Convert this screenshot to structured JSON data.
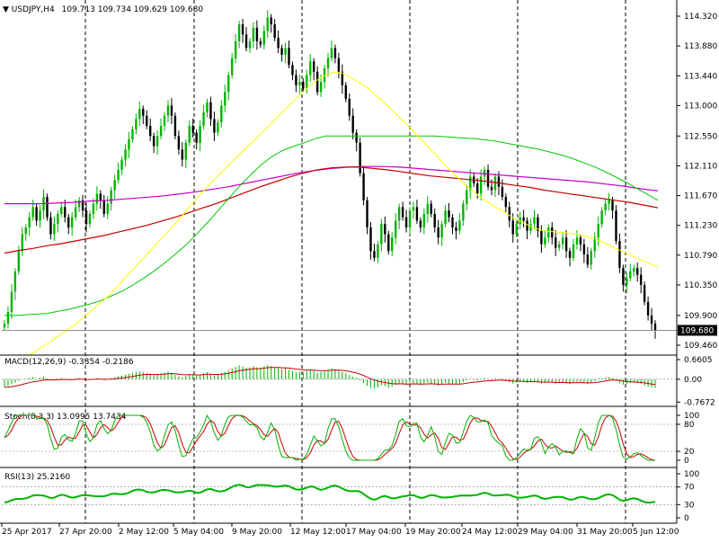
{
  "header": {
    "symbol_tf": "USDJPY,H4",
    "ohlc": "109.713 109.734 109.629 109.680"
  },
  "colors": {
    "candle_up": "#00b400",
    "candle_down": "#000000",
    "ma_fast": "#ffff00",
    "ma_mid": "#00c800",
    "ma_red": "#c80000",
    "ma_magenta": "#c800c8",
    "macd_hist": "#00b400",
    "macd_signal": "#c80000",
    "stoch_main": "#00b400",
    "stoch_signal": "#c80000",
    "rsi": "#00b400",
    "grid": "#000000",
    "price_tag_bg": "#000000",
    "price_tag_text": "#ffffff"
  },
  "chart_data": {
    "type": "line",
    "title": "USDJPY,H4",
    "price_axis": {
      "ticks": [
        "114.320",
        "113.880",
        "113.440",
        "113.000",
        "112.550",
        "112.110",
        "111.670",
        "111.230",
        "110.790",
        "110.350",
        "109.900",
        "109.460"
      ],
      "ylim": [
        109.46,
        114.32
      ]
    },
    "current_price": "109.680",
    "x_labels": [
      "25 Apr 2017",
      "27 Apr 20:00",
      "2 May 12:00",
      "5 May 04:00",
      "9 May 20:00",
      "12 May 12:00",
      "17 May 04:00",
      "19 May 20:00",
      "24 May 12:00",
      "29 May 04:00",
      "31 May 20:00",
      "5 Jun 12:00"
    ],
    "close": [
      109.78,
      109.95,
      110.25,
      110.55,
      110.85,
      111.1,
      111.2,
      111.35,
      111.5,
      111.3,
      111.45,
      111.65,
      111.35,
      111.1,
      111.25,
      111.4,
      111.5,
      111.35,
      111.2,
      111.35,
      111.5,
      111.6,
      111.45,
      111.25,
      111.4,
      111.55,
      111.7,
      111.6,
      111.4,
      111.55,
      111.75,
      111.9,
      112.05,
      112.2,
      112.35,
      112.5,
      112.65,
      112.8,
      112.95,
      112.85,
      112.7,
      112.55,
      112.4,
      112.55,
      112.7,
      112.85,
      113.0,
      112.85,
      112.55,
      112.35,
      112.2,
      112.45,
      112.7,
      112.6,
      112.45,
      112.7,
      112.9,
      113.05,
      112.8,
      112.6,
      112.75,
      113.0,
      113.2,
      113.45,
      113.7,
      113.95,
      114.2,
      114.05,
      113.85,
      113.95,
      114.15,
      113.95,
      113.9,
      114.1,
      114.3,
      114.2,
      114.0,
      113.85,
      113.75,
      113.85,
      113.6,
      113.45,
      113.3,
      113.35,
      113.25,
      113.45,
      113.65,
      113.5,
      113.2,
      113.35,
      113.55,
      113.7,
      113.85,
      113.7,
      113.5,
      113.3,
      113.1,
      112.85,
      112.6,
      112.45,
      112.0,
      111.6,
      111.2,
      110.85,
      110.75,
      110.95,
      111.25,
      111.1,
      110.85,
      111.05,
      111.3,
      111.5,
      111.35,
      111.2,
      111.45,
      111.5,
      111.3,
      111.2,
      111.4,
      111.55,
      111.4,
      111.2,
      111.05,
      111.25,
      111.45,
      111.35,
      111.2,
      111.15,
      111.3,
      111.55,
      111.75,
      111.95,
      111.85,
      111.7,
      111.95,
      112.05,
      111.8,
      111.75,
      111.95,
      111.8,
      111.65,
      111.5,
      111.3,
      111.1,
      111.25,
      111.35,
      111.3,
      111.15,
      111.25,
      111.35,
      111.15,
      110.95,
      111.05,
      111.2,
      111.05,
      110.9,
      110.95,
      111.05,
      110.85,
      110.75,
      110.95,
      111.05,
      110.95,
      110.8,
      110.65,
      110.85,
      111.05,
      111.25,
      111.45,
      111.55,
      111.6,
      111.45,
      111.0,
      110.6,
      110.35,
      110.45,
      110.55,
      110.6,
      110.5,
      110.35,
      110.1,
      109.9,
      109.78,
      109.68
    ],
    "ma_fast": [
      109.3,
      109.37,
      109.46,
      109.55,
      109.64,
      109.73,
      109.84,
      109.95,
      110.07,
      110.18,
      110.32,
      110.47,
      110.61,
      110.76,
      110.9,
      111.05,
      111.19,
      111.34,
      111.5,
      111.65,
      111.8,
      111.94,
      112.07,
      112.2,
      112.33,
      112.46,
      112.59,
      112.72,
      112.86,
      112.99,
      113.12,
      113.25,
      113.36,
      113.44,
      113.49,
      113.48,
      113.41,
      113.33,
      113.24,
      113.12,
      113.0,
      112.87,
      112.74,
      112.6,
      112.46,
      112.32,
      112.18,
      112.04,
      111.91,
      111.79,
      111.68,
      111.58,
      111.5,
      111.42,
      111.34,
      111.27,
      111.21,
      111.16,
      111.14,
      111.13,
      111.12,
      111.1,
      111.07,
      111.03,
      110.98,
      110.91,
      110.85,
      110.79,
      110.73,
      110.67,
      110.61
    ],
    "ma_mid": [
      109.9,
      109.9,
      109.91,
      109.92,
      109.93,
      109.96,
      109.99,
      110.03,
      110.07,
      110.12,
      110.19,
      110.26,
      110.35,
      110.45,
      110.56,
      110.68,
      110.81,
      110.95,
      111.11,
      111.28,
      111.46,
      111.64,
      111.82,
      111.98,
      112.13,
      112.25,
      112.34,
      112.4,
      112.45,
      112.51,
      112.55,
      112.55,
      112.55,
      112.55,
      112.55,
      112.55,
      112.55,
      112.55,
      112.55,
      112.55,
      112.55,
      112.54,
      112.53,
      112.52,
      112.51,
      112.49,
      112.47,
      112.44,
      112.41,
      112.38,
      112.35,
      112.31,
      112.27,
      112.22,
      112.16,
      112.1,
      112.03,
      111.95,
      111.87,
      111.78,
      111.69,
      111.6
    ],
    "ma_red": [
      110.82,
      110.86,
      110.89,
      110.93,
      110.96,
      111.0,
      111.04,
      111.08,
      111.13,
      111.18,
      111.23,
      111.29,
      111.35,
      111.42,
      111.49,
      111.56,
      111.64,
      111.72,
      111.8,
      111.87,
      111.94,
      112.0,
      112.05,
      112.08,
      112.09,
      112.09,
      112.07,
      112.05,
      112.02,
      111.99,
      111.96,
      111.94,
      111.92,
      111.9,
      111.88,
      111.85,
      111.82,
      111.79,
      111.75,
      111.72,
      111.69,
      111.66,
      111.63,
      111.6,
      111.57,
      111.53,
      111.49
    ],
    "ma_magenta": [
      111.55,
      111.55,
      111.55,
      111.56,
      111.57,
      111.59,
      111.6,
      111.62,
      111.64,
      111.66,
      111.69,
      111.72,
      111.76,
      111.8,
      111.85,
      111.9,
      111.95,
      112.0,
      112.04,
      112.07,
      112.09,
      112.1,
      112.1,
      112.09,
      112.07,
      112.05,
      112.03,
      112.01,
      111.99,
      111.97,
      111.95,
      111.93,
      111.91,
      111.89,
      111.87,
      111.84,
      111.81,
      111.77,
      111.74
    ],
    "macd": {
      "label": "MACD(12,26,9) -0.3354 -0.2186",
      "ticks": [
        "0.6605",
        "0.00",
        "-0.7672"
      ],
      "ylim": [
        -0.82,
        0.72
      ]
    },
    "stoch": {
      "label": "Stoch(8,3,3) 13.0995 13.7434",
      "ticks": [
        "100",
        "80",
        "20",
        "0"
      ],
      "ylim": [
        0,
        100
      ]
    },
    "rsi": {
      "label": "RSI(13) 25.2160",
      "ticks": [
        "100",
        "70",
        "30",
        "0"
      ],
      "ylim": [
        0,
        100
      ]
    }
  }
}
